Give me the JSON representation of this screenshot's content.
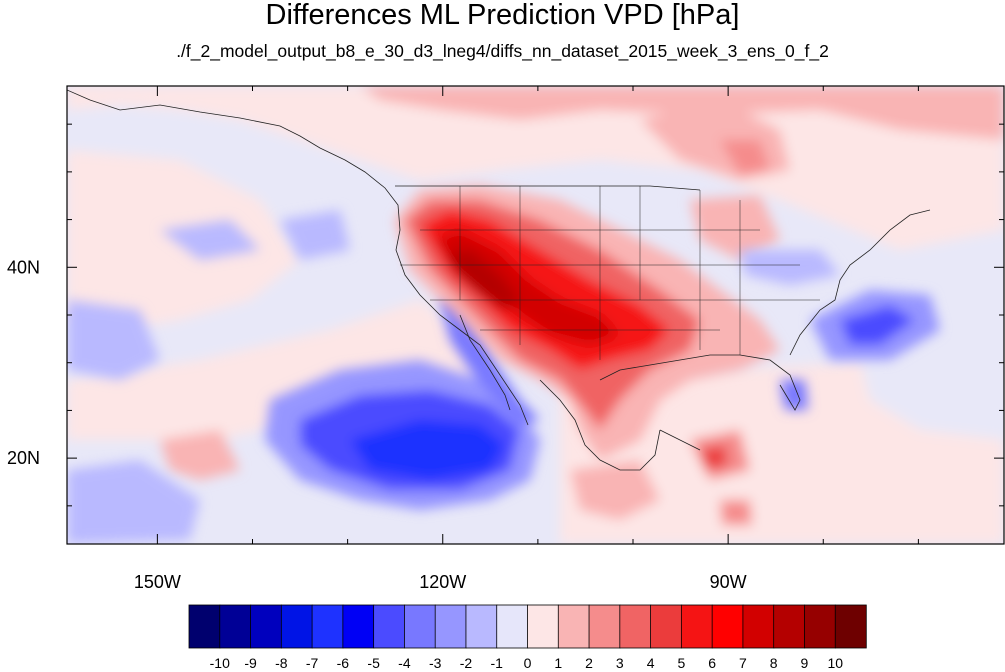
{
  "title": "Differences ML Prediction VPD [hPa]",
  "subtitle": "./f_2_model_output_b8_e_30_d3_lneg4/diffs_nn_dataset_2015_week_3_ens_0_f_2",
  "lon_ticks": [
    {
      "label": "150W",
      "lon": -150
    },
    {
      "label": "120W",
      "lon": -120
    },
    {
      "label": "90W",
      "lon": -90
    }
  ],
  "lat_ticks": [
    {
      "label": "40N",
      "lat": 40
    },
    {
      "label": "20N",
      "lat": 20
    }
  ],
  "map_extent": {
    "lon_min": -159.5,
    "lon_max": -61,
    "lat_min": 11,
    "lat_max": 59
  },
  "colorbar": {
    "labels": [
      "-10",
      "-9",
      "-8",
      "-7",
      "-6",
      "-5",
      "-4",
      "-3",
      "-2",
      "-1",
      "0",
      "1",
      "2",
      "3",
      "4",
      "5",
      "6",
      "7",
      "8",
      "9",
      "10"
    ],
    "colors": [
      "#00006e",
      "#000096",
      "#0000be",
      "#0014e6",
      "#1e32ff",
      "#0000f5",
      "#4b4bff",
      "#7878ff",
      "#9696ff",
      "#b9b9ff",
      "#e6e6fa",
      "#fde6e6",
      "#f9b4b4",
      "#f58c8c",
      "#f06464",
      "#eb3c3c",
      "#f51414",
      "#ff0000",
      "#d20000",
      "#b40000",
      "#960000",
      "#6e0000"
    ]
  }
}
